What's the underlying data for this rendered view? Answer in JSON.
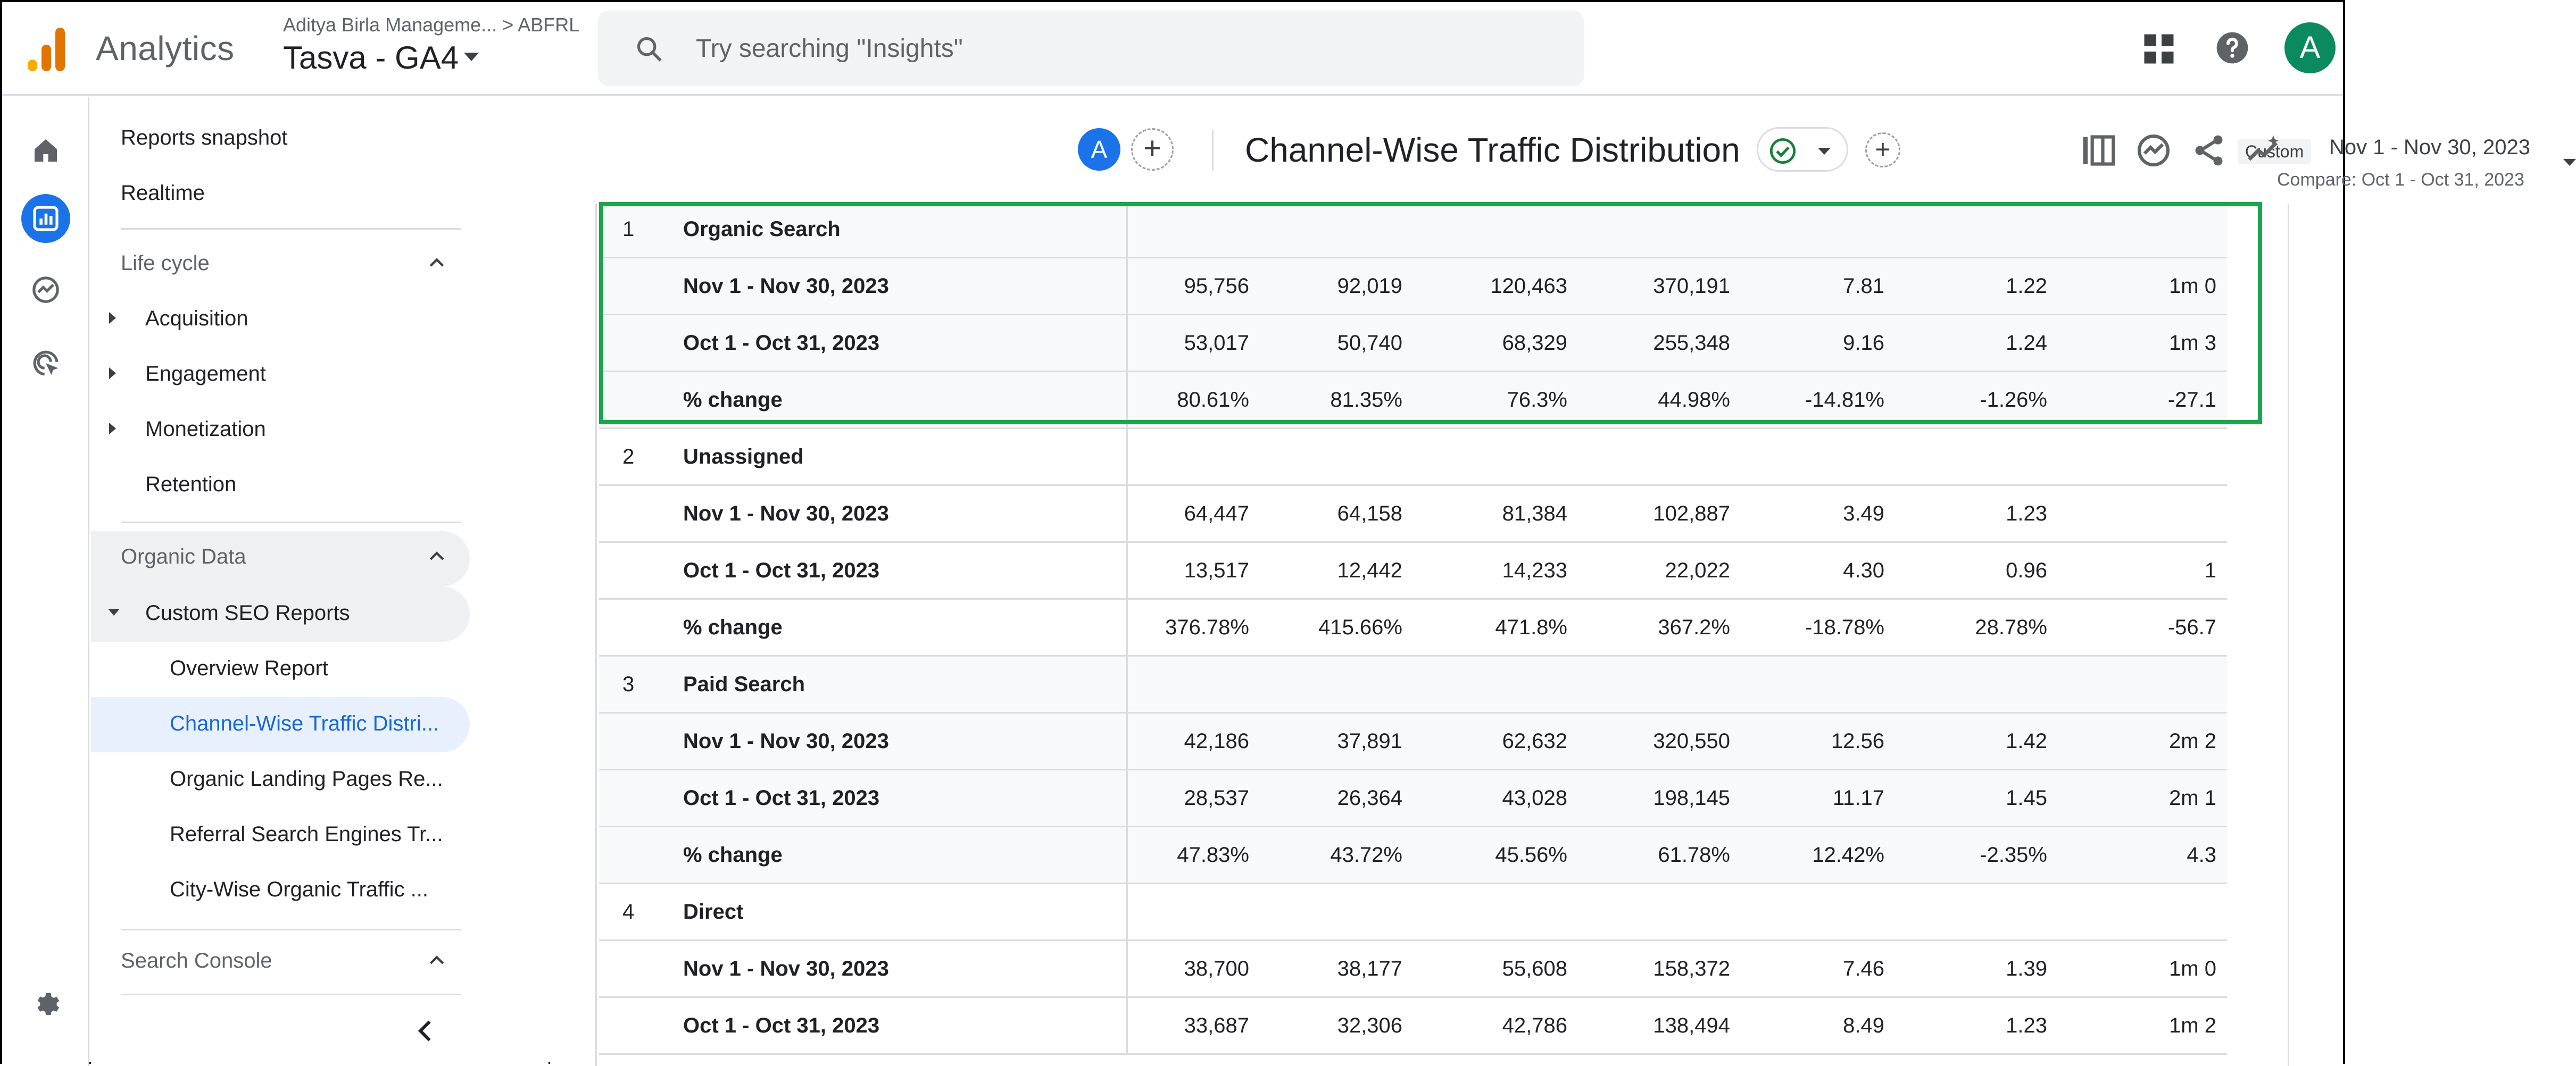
{
  "header": {
    "app_name": "Analytics",
    "account_path": "Aditya Birla Manageme...  >  ABFRL",
    "property": "Tasva - GA4",
    "search_placeholder": "Try searching \"Insights\"",
    "avatar_letter": "A"
  },
  "nav": {
    "reports_snapshot": "Reports snapshot",
    "realtime": "Realtime",
    "lifecycle": "Life cycle",
    "acquisition": "Acquisition",
    "engagement": "Engagement",
    "monetization": "Monetization",
    "retention": "Retention",
    "organic_data": "Organic Data",
    "custom_seo_reports": "Custom SEO Reports",
    "overview_report": "Overview Report",
    "channel_wise": "Channel-Wise Traffic Distri...",
    "organic_landing": "Organic Landing Pages Re...",
    "referral_search": "Referral Search Engines Tr...",
    "city_wise": "City-Wise Organic Traffic ...",
    "search_console": "Search Console"
  },
  "toolbar": {
    "avatar_letter": "A",
    "plus": "+",
    "title": "Channel-Wise Traffic Distribution",
    "date_badge": "Custom",
    "date_range": "Nov 1 - Nov 30, 2023",
    "compare": "Compare: Oct 1 - Oct 31, 2023"
  },
  "table": {
    "rows": [
      {
        "idx": "1",
        "label": "Organic Search",
        "cells": []
      },
      {
        "idx": "",
        "label": "Nov 1 - Nov 30, 2023",
        "cells": [
          "95,756",
          "92,019",
          "120,463",
          "370,191",
          "7.81",
          "1.22",
          "1m 0"
        ]
      },
      {
        "idx": "",
        "label": "Oct 1 - Oct 31, 2023",
        "cells": [
          "53,017",
          "50,740",
          "68,329",
          "255,348",
          "9.16",
          "1.24",
          "1m 3"
        ]
      },
      {
        "idx": "",
        "label": "% change",
        "cells": [
          "80.61%",
          "81.35%",
          "76.3%",
          "44.98%",
          "-14.81%",
          "-1.26%",
          "-27.1"
        ]
      },
      {
        "idx": "2",
        "label": "Unassigned",
        "cells": []
      },
      {
        "idx": "",
        "label": "Nov 1 - Nov 30, 2023",
        "cells": [
          "64,447",
          "64,158",
          "81,384",
          "102,887",
          "3.49",
          "1.23",
          ""
        ]
      },
      {
        "idx": "",
        "label": "Oct 1 - Oct 31, 2023",
        "cells": [
          "13,517",
          "12,442",
          "14,233",
          "22,022",
          "4.30",
          "0.96",
          "1"
        ]
      },
      {
        "idx": "",
        "label": "% change",
        "cells": [
          "376.78%",
          "415.66%",
          "471.8%",
          "367.2%",
          "-18.78%",
          "28.78%",
          "-56.7"
        ]
      },
      {
        "idx": "3",
        "label": "Paid Search",
        "cells": []
      },
      {
        "idx": "",
        "label": "Nov 1 - Nov 30, 2023",
        "cells": [
          "42,186",
          "37,891",
          "62,632",
          "320,550",
          "12.56",
          "1.42",
          "2m 2"
        ]
      },
      {
        "idx": "",
        "label": "Oct 1 - Oct 31, 2023",
        "cells": [
          "28,537",
          "26,364",
          "43,028",
          "198,145",
          "11.17",
          "1.45",
          "2m 1"
        ]
      },
      {
        "idx": "",
        "label": "% change",
        "cells": [
          "47.83%",
          "43.72%",
          "45.56%",
          "61.78%",
          "12.42%",
          "-2.35%",
          "4.3"
        ]
      },
      {
        "idx": "4",
        "label": "Direct",
        "cells": []
      },
      {
        "idx": "",
        "label": "Nov 1 - Nov 30, 2023",
        "cells": [
          "38,700",
          "38,177",
          "55,608",
          "158,372",
          "7.46",
          "1.39",
          "1m 0"
        ]
      },
      {
        "idx": "",
        "label": "Oct 1 - Oct 31, 2023",
        "cells": [
          "33,687",
          "32,306",
          "42,786",
          "138,494",
          "8.49",
          "1.23",
          "1m 2"
        ]
      }
    ]
  },
  "colors": {
    "accent_blue": "#1a73e8",
    "highlight_green": "#1aa64c",
    "avatar_green": "#0b8a5f"
  }
}
